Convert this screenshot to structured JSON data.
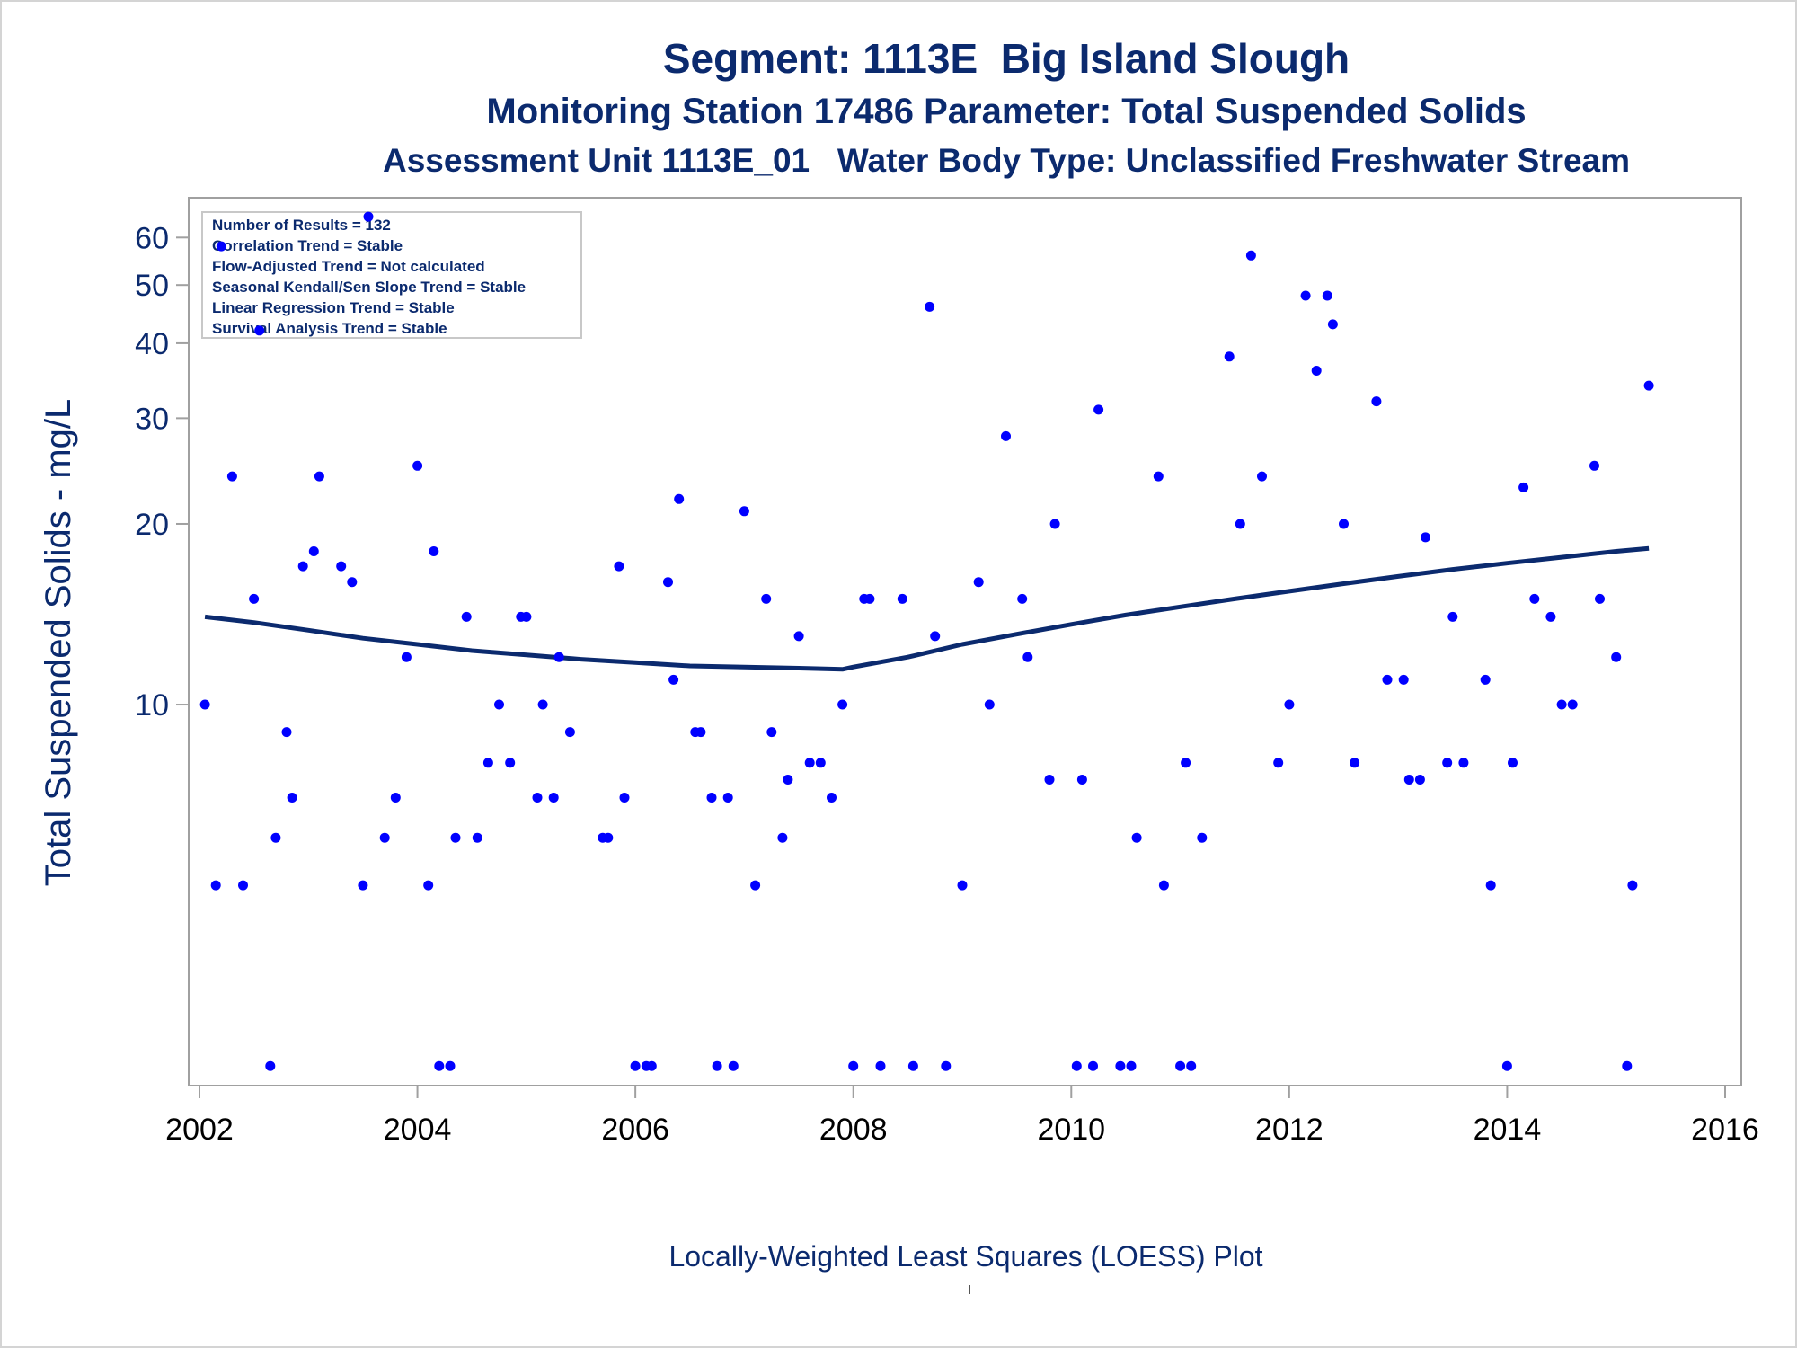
{
  "titles": {
    "line1": "Segment: 1113E  Big Island Slough",
    "line2": "Monitoring Station 17486 Parameter: Total Suspended Solids",
    "line3": "Assessment Unit 1113E_01   Water Body Type: Unclassified Freshwater Stream"
  },
  "footnote": "Locally-Weighted Least Squares (LOESS) Plot",
  "colors": {
    "text": "#0b2a6e",
    "axis_text": "#0b2a6e",
    "x_tick_text": "#000000",
    "points": "#0000ff",
    "loess_line": "#0b2a6e",
    "frame": "#a0a0a0"
  },
  "stats_box": {
    "lines": [
      "Number of Results = 132",
      "Correlation Trend = Stable",
      "Flow-Adjusted Trend = Not calculated",
      "Seasonal Kendall/Sen Slope Trend = Stable",
      "Linear Regression Trend = Stable",
      "Survival Analysis Trend = Stable"
    ],
    "placement": "top-left"
  },
  "chart_data": {
    "type": "scatter",
    "xlabel": "",
    "ylabel": "Total Suspended Solids - mg/L",
    "x_ticks": [
      "2002",
      "2004",
      "2006",
      "2008",
      "2010",
      "2012",
      "2014",
      "2016"
    ],
    "y_ticks": [
      "10",
      "20",
      "30",
      "40",
      "50",
      "60"
    ],
    "y_tick_values": [
      10,
      20,
      30,
      40,
      50,
      60
    ],
    "xlim": [
      2002,
      2016
    ],
    "ylim": [
      2.4,
      68
    ],
    "y_scale": "log",
    "grid": false,
    "series": [
      {
        "kind": "points",
        "x": [
          2002.05,
          2002.15,
          2002.2,
          2002.3,
          2002.4,
          2002.5,
          2002.55,
          2002.65,
          2002.7,
          2002.8,
          2002.85,
          2002.95,
          2003.05,
          2003.1,
          2003.3,
          2003.4,
          2003.5,
          2003.55,
          2003.7,
          2003.8,
          2003.9,
          2004.0,
          2004.1,
          2004.15,
          2004.2,
          2004.3,
          2004.35,
          2004.45,
          2004.55,
          2004.65,
          2004.75,
          2004.85,
          2004.95,
          2005.0,
          2005.1,
          2005.15,
          2005.25,
          2005.3,
          2005.4,
          2005.7,
          2005.75,
          2005.85,
          2005.9,
          2006.0,
          2006.1,
          2006.15,
          2006.3,
          2006.35,
          2006.4,
          2006.55,
          2006.6,
          2006.7,
          2006.75,
          2006.85,
          2006.9,
          2007.0,
          2007.1,
          2007.2,
          2007.25,
          2007.35,
          2007.4,
          2007.5,
          2007.6,
          2007.7,
          2007.8,
          2007.9,
          2008.0,
          2008.1,
          2008.15,
          2008.25,
          2008.45,
          2008.55,
          2008.7,
          2008.75,
          2008.85,
          2009.0,
          2009.15,
          2009.25,
          2009.4,
          2009.55,
          2009.6,
          2009.8,
          2009.85,
          2010.05,
          2010.1,
          2010.2,
          2010.25,
          2010.45,
          2010.55,
          2010.6,
          2010.8,
          2010.85,
          2011.0,
          2011.05,
          2011.1,
          2011.2,
          2011.45,
          2011.55,
          2011.65,
          2011.75,
          2011.9,
          2012.0,
          2012.15,
          2012.25,
          2012.35,
          2012.4,
          2012.5,
          2012.6,
          2012.8,
          2012.9,
          2013.05,
          2013.1,
          2013.2,
          2013.25,
          2013.45,
          2013.5,
          2013.6,
          2013.8,
          2013.85,
          2014.0,
          2014.05,
          2014.15,
          2014.25,
          2014.4,
          2014.5,
          2014.6,
          2014.8,
          2014.85,
          2015.0,
          2015.1,
          2015.15,
          2015.3
        ],
        "y": [
          10,
          5,
          58,
          24,
          5,
          15,
          42,
          2.5,
          6,
          9,
          7,
          17,
          18,
          24,
          17,
          16,
          5,
          65,
          6,
          7,
          12,
          25,
          5,
          18,
          2.5,
          2.5,
          6,
          14,
          6,
          8,
          10,
          8,
          14,
          14,
          7,
          10,
          7,
          12,
          9,
          6,
          6,
          17,
          7,
          2.5,
          2.5,
          2.5,
          16,
          11,
          22,
          9,
          9,
          7,
          2.5,
          7,
          2.5,
          21,
          5,
          15,
          9,
          6,
          7.5,
          13,
          8,
          8,
          7,
          10,
          2.5,
          15,
          15,
          2.5,
          15,
          2.5,
          46,
          13,
          2.5,
          5,
          16,
          10,
          28,
          15,
          12,
          7.5,
          20,
          2.5,
          7.5,
          2.5,
          31,
          2.5,
          2.5,
          6,
          24,
          5,
          2.5,
          8,
          2.5,
          6,
          38,
          20,
          56,
          24,
          8,
          10,
          48,
          36,
          48,
          43,
          20,
          8,
          32,
          11,
          11,
          7.5,
          7.5,
          19,
          8,
          14,
          8,
          11,
          5,
          2.5,
          8,
          23,
          15,
          14,
          10,
          10,
          25,
          15,
          12,
          2.5,
          5,
          34
        ]
      },
      {
        "kind": "loess",
        "x": [
          2002.05,
          2002.5,
          2003.0,
          2003.5,
          2004.0,
          2004.5,
          2005.0,
          2005.5,
          2006.0,
          2006.5,
          2007.0,
          2007.5,
          2007.9,
          2008.0,
          2008.5,
          2009.0,
          2009.5,
          2010.0,
          2010.5,
          2011.0,
          2011.5,
          2012.0,
          2012.5,
          2013.0,
          2013.5,
          2014.0,
          2014.5,
          2015.0,
          2015.3
        ],
        "y": [
          14.0,
          13.7,
          13.3,
          12.9,
          12.6,
          12.3,
          12.1,
          11.9,
          11.75,
          11.6,
          11.55,
          11.5,
          11.45,
          11.55,
          12.0,
          12.6,
          13.1,
          13.6,
          14.1,
          14.55,
          15.0,
          15.45,
          15.9,
          16.35,
          16.8,
          17.2,
          17.6,
          18.0,
          18.2
        ]
      }
    ]
  }
}
